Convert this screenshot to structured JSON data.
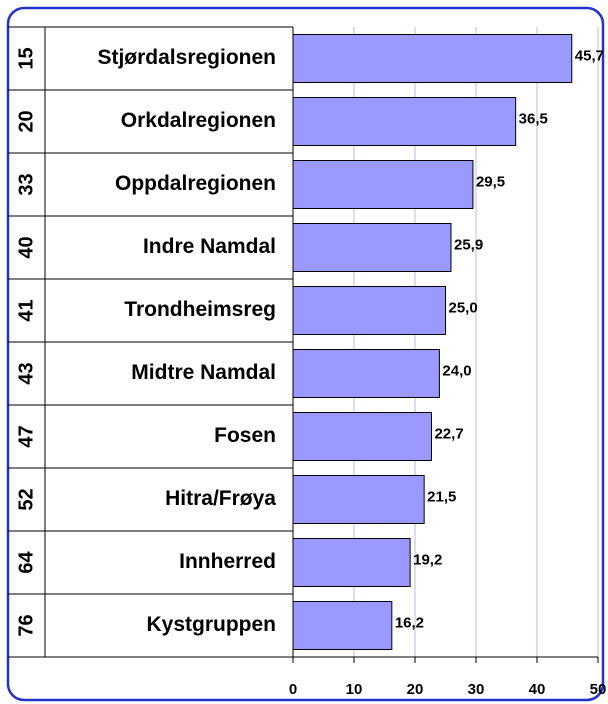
{
  "chart_data": {
    "type": "bar",
    "orientation": "horizontal",
    "ranks": [
      15,
      20,
      33,
      40,
      41,
      43,
      47,
      52,
      64,
      76
    ],
    "categories": [
      "Stjørdalsregionen",
      "Orkdalregionen",
      "Oppdalregionen",
      "Indre Namdal",
      "Trondheimsreg",
      "Midtre Namdal",
      "Fosen",
      "Hitra/Frøya",
      "Innherred",
      "Kystgruppen"
    ],
    "values": [
      45.7,
      36.5,
      29.5,
      25.9,
      25.0,
      24.0,
      22.7,
      21.5,
      19.2,
      16.2
    ],
    "value_labels": [
      "45,7",
      "36,5",
      "29,5",
      "25,9",
      "25,0",
      "24,0",
      "22,7",
      "21,5",
      "19,2",
      "16,2"
    ],
    "color": "#9999ff",
    "xlim": [
      0,
      50
    ],
    "xticks": [
      0,
      10,
      20,
      30,
      40,
      50
    ],
    "grid": true
  }
}
